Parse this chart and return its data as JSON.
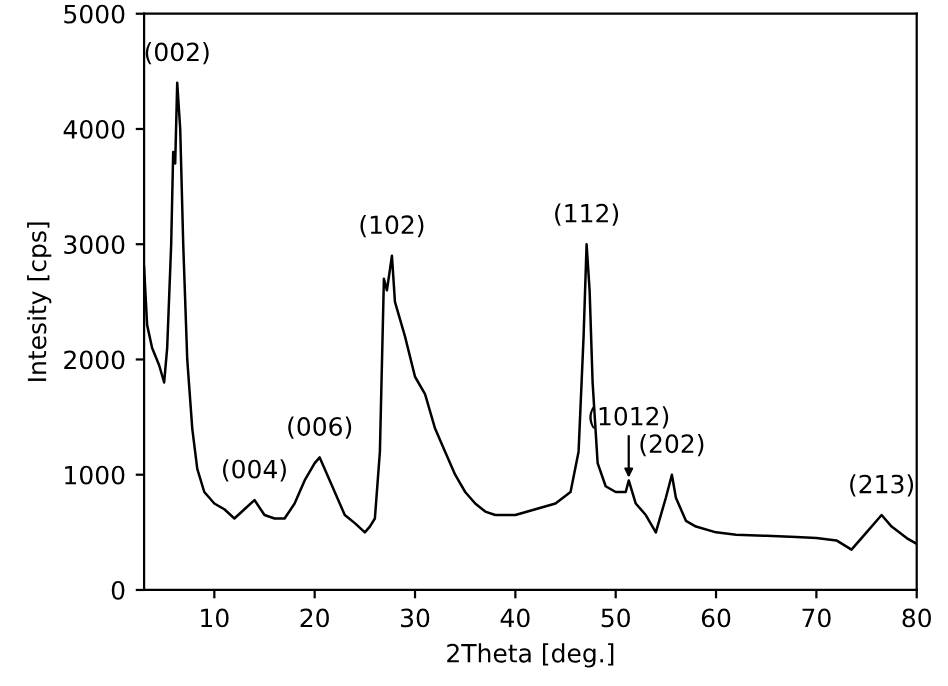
{
  "chart_data": {
    "type": "line",
    "xlabel": "2Theta [deg.]",
    "ylabel": "Intesity [cps]",
    "xlim": [
      3,
      80
    ],
    "ylim": [
      0,
      5000
    ],
    "xticks": [
      10,
      20,
      30,
      40,
      50,
      60,
      70,
      80
    ],
    "yticks": [
      0,
      1000,
      2000,
      3000,
      4000,
      5000
    ],
    "grid": false,
    "marker": "none",
    "line_style": "solid",
    "x": [
      3.0,
      3.3,
      3.8,
      4.5,
      5.0,
      5.3,
      5.7,
      5.9,
      6.1,
      6.3,
      6.6,
      6.9,
      7.3,
      7.8,
      8.3,
      9,
      10,
      11,
      12,
      13,
      14,
      15,
      16,
      17,
      18,
      19,
      20,
      20.5,
      21,
      22,
      23,
      24,
      25,
      25.5,
      26,
      26.5,
      26.9,
      27.2,
      27.7,
      28,
      29,
      30,
      31,
      32,
      33,
      34,
      35,
      36,
      37,
      38,
      40,
      42,
      44,
      45.5,
      46.3,
      46.8,
      47.1,
      47.4,
      47.7,
      48.2,
      49,
      50,
      51,
      51.3,
      52,
      53,
      54,
      55,
      55.6,
      56,
      57,
      58,
      60,
      62,
      65,
      68,
      70,
      72,
      73.5,
      75,
      76.5,
      77.5,
      79,
      80
    ],
    "series": [
      {
        "color": "#000000",
        "values": [
          2800,
          2300,
          2100,
          1950,
          1800,
          2100,
          3000,
          3800,
          3700,
          4400,
          4000,
          3000,
          2000,
          1400,
          1050,
          850,
          750,
          700,
          620,
          700,
          780,
          650,
          620,
          620,
          750,
          950,
          1100,
          1150,
          1050,
          850,
          650,
          580,
          500,
          550,
          620,
          1200,
          2700,
          2600,
          2900,
          2500,
          2200,
          1850,
          1700,
          1400,
          1200,
          1000,
          850,
          750,
          680,
          650,
          650,
          700,
          750,
          850,
          1200,
          2200,
          3000,
          2600,
          1800,
          1100,
          900,
          850,
          850,
          950,
          750,
          650,
          500,
          800,
          1000,
          800,
          600,
          550,
          500,
          480,
          470,
          460,
          450,
          430,
          350,
          500,
          650,
          550,
          450,
          400
        ]
      }
    ],
    "annotations": [
      {
        "text": "(002)",
        "x": 6.3,
        "y": 4400
      },
      {
        "text": "(004)",
        "x": 14,
        "y": 780
      },
      {
        "text": "(006)",
        "x": 20.5,
        "y": 1150
      },
      {
        "text": "(102)",
        "x": 27.7,
        "y": 2900
      },
      {
        "text": "(112)",
        "x": 47.1,
        "y": 3000
      },
      {
        "text": "(1012)",
        "x": 51.3,
        "y": 950
      },
      {
        "text": "(202)",
        "x": 55.6,
        "y": 1000
      },
      {
        "text": "(213)",
        "x": 76.5,
        "y": 650
      }
    ]
  }
}
